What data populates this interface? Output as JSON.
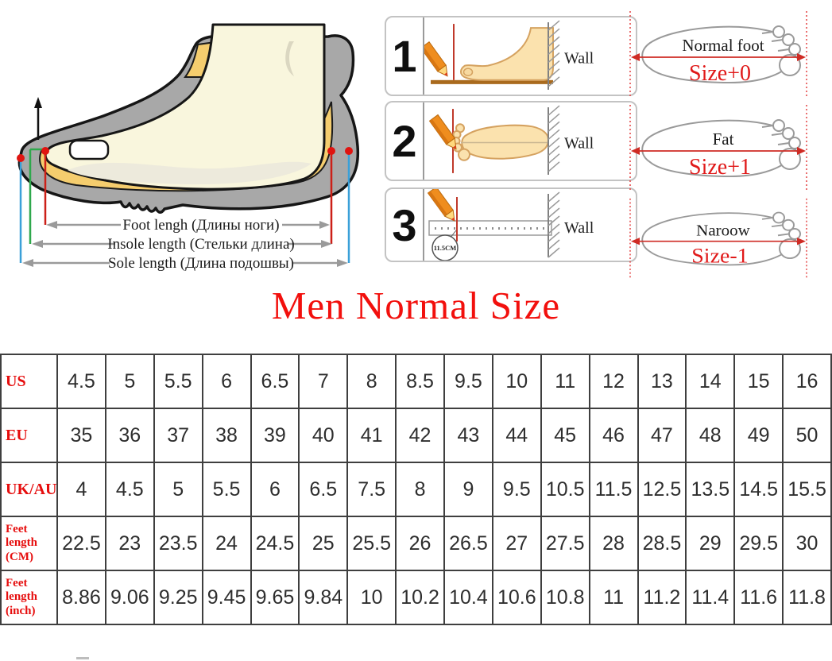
{
  "measure_diagram": {
    "foot_length": "Foot lengh (Длины ноги)",
    "insole_length": "Insole length (Стельки длина)",
    "sole_length": "Sole length (Длина подошвы)"
  },
  "steps": [
    {
      "number": "1",
      "wall": "Wall"
    },
    {
      "number": "2",
      "wall": "Wall"
    },
    {
      "number": "3",
      "wall": "Wall",
      "measurement": "11.5CM"
    }
  ],
  "foot_types": [
    {
      "name": "Normal foot",
      "size_adjust": "Size+0"
    },
    {
      "name": "Fat",
      "size_adjust": "Size+1"
    },
    {
      "name": "Naroow",
      "size_adjust": "Size-1"
    }
  ],
  "chart_data": {
    "type": "table",
    "title": "Men Normal Size",
    "rows": [
      {
        "header": "US",
        "values": [
          "4.5",
          "5",
          "5.5",
          "6",
          "6.5",
          "7",
          "8",
          "8.5",
          "9.5",
          "10",
          "11",
          "12",
          "13",
          "14",
          "15",
          "16"
        ]
      },
      {
        "header": "EU",
        "values": [
          "35",
          "36",
          "37",
          "38",
          "39",
          "40",
          "41",
          "42",
          "43",
          "44",
          "45",
          "46",
          "47",
          "48",
          "49",
          "50"
        ]
      },
      {
        "header": "UK/AU",
        "values": [
          "4",
          "4.5",
          "5",
          "5.5",
          "6",
          "6.5",
          "7.5",
          "8",
          "9",
          "9.5",
          "10.5",
          "11.5",
          "12.5",
          "13.5",
          "14.5",
          "15.5"
        ]
      },
      {
        "header": "Feet length (CM)",
        "values": [
          "22.5",
          "23",
          "23.5",
          "24",
          "24.5",
          "25",
          "25.5",
          "26",
          "26.5",
          "27",
          "27.5",
          "28",
          "28.5",
          "29",
          "29.5",
          "30"
        ]
      },
      {
        "header": "Feet length (inch)",
        "values": [
          "8.86",
          "9.06",
          "9.25",
          "9.45",
          "9.65",
          "9.84",
          "10",
          "10.2",
          "10.4",
          "10.6",
          "10.8",
          "11",
          "11.2",
          "11.4",
          "11.6",
          "11.8"
        ]
      }
    ]
  },
  "colors": {
    "accent_red": "#f2100d",
    "table_header_red": "#e60d0d",
    "measure_red": "#d42a20",
    "measure_green": "#2fa84c",
    "measure_blue": "#3aa0d8",
    "pencil_orange": "#ef8d1e",
    "shoe_gray": "#a8a8a8",
    "insole_yellow": "#f5cd6e",
    "skin_tone": "#fbe2ae"
  }
}
